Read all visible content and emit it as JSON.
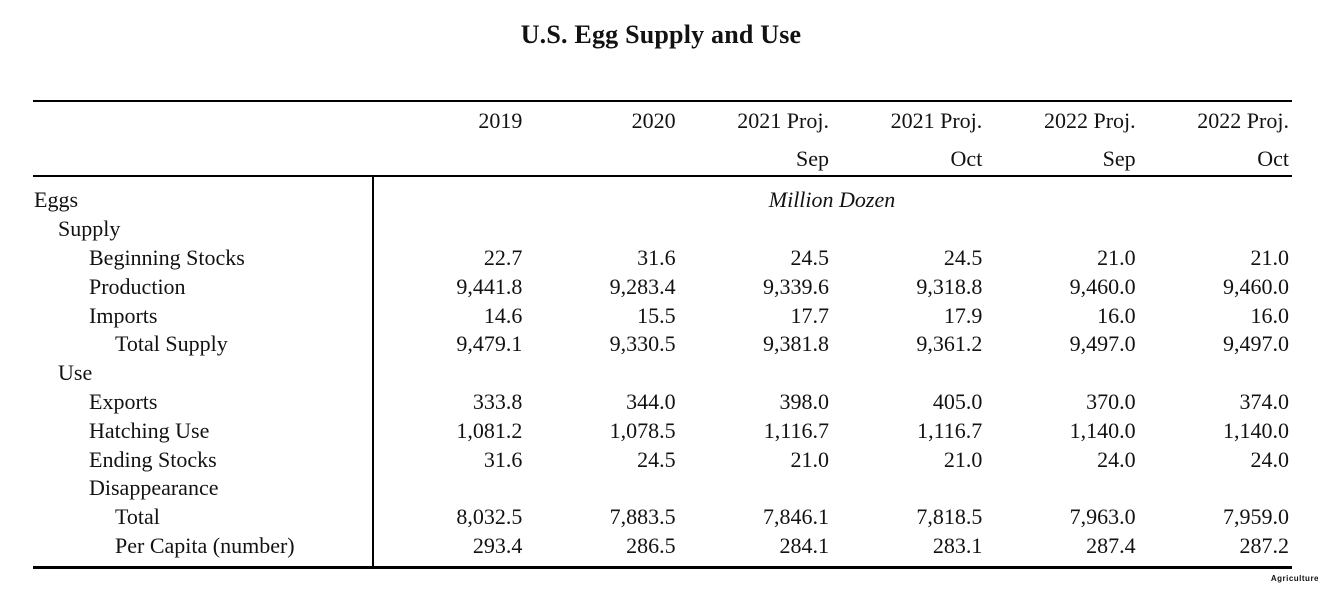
{
  "title": "U.S. Egg Supply and Use",
  "table": {
    "unit_label": "Million Dozen",
    "columns": [
      {
        "year": "2019",
        "sub": ""
      },
      {
        "year": "2020",
        "sub": ""
      },
      {
        "year": "2021 Proj.",
        "sub": "Sep"
      },
      {
        "year": "2021 Proj.",
        "sub": "Oct"
      },
      {
        "year": "2022 Proj.",
        "sub": "Sep"
      },
      {
        "year": "2022 Proj.",
        "sub": "Oct"
      }
    ],
    "rows": [
      {
        "label": "Eggs",
        "indent": 0,
        "values": []
      },
      {
        "label": "Supply",
        "indent": 1,
        "values": []
      },
      {
        "label": "Beginning Stocks",
        "indent": 2,
        "values": [
          "22.7",
          "31.6",
          "24.5",
          "24.5",
          "21.0",
          "21.0"
        ]
      },
      {
        "label": "Production",
        "indent": 2,
        "values": [
          "9,441.8",
          "9,283.4",
          "9,339.6",
          "9,318.8",
          "9,460.0",
          "9,460.0"
        ]
      },
      {
        "label": "Imports",
        "indent": 2,
        "values": [
          "14.6",
          "15.5",
          "17.7",
          "17.9",
          "16.0",
          "16.0"
        ]
      },
      {
        "label": "Total Supply",
        "indent": 3,
        "values": [
          "9,479.1",
          "9,330.5",
          "9,381.8",
          "9,361.2",
          "9,497.0",
          "9,497.0"
        ]
      },
      {
        "label": "Use",
        "indent": 1,
        "values": []
      },
      {
        "label": "Exports",
        "indent": 2,
        "values": [
          "333.8",
          "344.0",
          "398.0",
          "405.0",
          "370.0",
          "374.0"
        ]
      },
      {
        "label": "Hatching Use",
        "indent": 2,
        "values": [
          "1,081.2",
          "1,078.5",
          "1,116.7",
          "1,116.7",
          "1,140.0",
          "1,140.0"
        ]
      },
      {
        "label": "Ending Stocks",
        "indent": 2,
        "values": [
          "31.6",
          "24.5",
          "21.0",
          "21.0",
          "24.0",
          "24.0"
        ]
      },
      {
        "label": "Disappearance",
        "indent": 2,
        "values": []
      },
      {
        "label": "Total",
        "indent": 3,
        "values": [
          "8,032.5",
          "7,883.5",
          "7,846.1",
          "7,818.5",
          "7,963.0",
          "7,959.0"
        ]
      },
      {
        "label": "Per Capita (number)",
        "indent": 3,
        "values": [
          "293.4",
          "286.5",
          "284.1",
          "283.1",
          "287.4",
          "287.2"
        ]
      }
    ]
  },
  "footer": {
    "watermark": "Agriculture"
  },
  "colors": {
    "background": "#ffffff",
    "text": "#121212",
    "rule": "#000000"
  }
}
